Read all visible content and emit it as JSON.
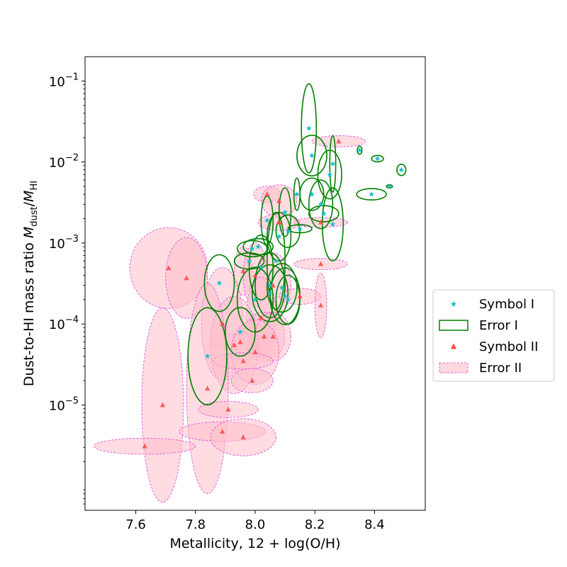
{
  "chart_data": {
    "type": "scatter",
    "xlabel": "Metallicity, 12 + log(O/H)",
    "ylabel_main": "Dust-to-HI mass ratio ",
    "ylabel_math_M": "M",
    "ylabel_sub_dust": "dust",
    "ylabel_sub_HI": "HI",
    "xlim": [
      7.43,
      8.57
    ],
    "ylim_log10": [
      -6.3,
      -0.7
    ],
    "y_scale": "log",
    "x_ticks": [
      {
        "value": 7.6,
        "label": "7.6"
      },
      {
        "value": 7.8,
        "label": "7.8"
      },
      {
        "value": 8.0,
        "label": "8.0"
      },
      {
        "value": 8.2,
        "label": "8.2"
      },
      {
        "value": 8.4,
        "label": "8.4"
      }
    ],
    "y_ticks": [
      {
        "exp": -1,
        "base": "10",
        "sup": "−1"
      },
      {
        "exp": -2,
        "base": "10",
        "sup": "−2"
      },
      {
        "exp": -3,
        "base": "10",
        "sup": "−3"
      },
      {
        "exp": -4,
        "base": "10",
        "sup": "−4"
      },
      {
        "exp": -5,
        "base": "10",
        "sup": "−5"
      }
    ],
    "legend": {
      "position": "right",
      "entries": [
        {
          "label": "Symbol I",
          "kind": "star"
        },
        {
          "label": "Error I",
          "kind": "ellipse-outline"
        },
        {
          "label": "Symbol II",
          "kind": "triangle"
        },
        {
          "label": "Error II",
          "kind": "ellipse-fill"
        }
      ]
    },
    "colors": {
      "symbol_I": "#17becf",
      "error_I": "#008000",
      "symbol_II": "#ff4444",
      "error_II_fill": "#ffc0cb",
      "error_II_edge": "#e040e0"
    },
    "series": [
      {
        "name": "Symbol I",
        "marker": "star",
        "points": [
          {
            "x": 8.18,
            "y": 0.026,
            "dx": 0.025,
            "dlog": 0.55
          },
          {
            "x": 8.19,
            "y": 0.012,
            "dx": 0.05,
            "dlog": 0.25
          },
          {
            "x": 8.25,
            "y": 0.007,
            "dx": 0.04,
            "dlog": 0.3
          },
          {
            "x": 8.26,
            "y": 0.0095,
            "dx": 0.01,
            "dlog": 0.35
          },
          {
            "x": 8.35,
            "y": 0.014,
            "dx": 0.008,
            "dlog": 0.05
          },
          {
            "x": 8.41,
            "y": 0.011,
            "dx": 0.02,
            "dlog": 0.04
          },
          {
            "x": 8.49,
            "y": 0.008,
            "dx": 0.015,
            "dlog": 0.07
          },
          {
            "x": 8.45,
            "y": 0.005,
            "dx": 0.01,
            "dlog": 0.02
          },
          {
            "x": 8.39,
            "y": 0.004,
            "dx": 0.05,
            "dlog": 0.07
          },
          {
            "x": 8.14,
            "y": 0.004,
            "dx": 0.01,
            "dlog": 0.2
          },
          {
            "x": 8.19,
            "y": 0.004,
            "dx": 0.04,
            "dlog": 0.2
          },
          {
            "x": 8.22,
            "y": 0.003,
            "dx": 0.04,
            "dlog": 0.3
          },
          {
            "x": 8.23,
            "y": 0.0023,
            "dx": 0.05,
            "dlog": 0.1
          },
          {
            "x": 8.26,
            "y": 0.0017,
            "dx": 0.035,
            "dlog": 0.45
          },
          {
            "x": 8.1,
            "y": 0.0024,
            "dx": 0.02,
            "dlog": 0.3
          },
          {
            "x": 8.15,
            "y": 0.0015,
            "dx": 0.04,
            "dlog": 0.05
          },
          {
            "x": 8.04,
            "y": 0.0019,
            "dx": 0.02,
            "dlog": 0.3
          },
          {
            "x": 8.11,
            "y": 0.0014,
            "dx": 0.04,
            "dlog": 0.2
          },
          {
            "x": 8.08,
            "y": 0.0012,
            "dx": 0.04,
            "dlog": 0.3
          },
          {
            "x": 8.01,
            "y": 0.0009,
            "dx": 0.05,
            "dlog": 0.1
          },
          {
            "x": 7.99,
            "y": 0.00085,
            "dx": 0.05,
            "dlog": 0.1
          },
          {
            "x": 7.98,
            "y": 0.0006,
            "dx": 0.05,
            "dlog": 0.1
          },
          {
            "x": 8.07,
            "y": 0.0006,
            "dx": 0.03,
            "dlog": 0.6
          },
          {
            "x": 8.02,
            "y": 0.0005,
            "dx": 0.04,
            "dlog": 0.4
          },
          {
            "x": 7.88,
            "y": 0.00032,
            "dx": 0.05,
            "dlog": 0.35
          },
          {
            "x": 8.05,
            "y": 0.0003,
            "dx": 0.05,
            "dlog": 0.4
          },
          {
            "x": 8.05,
            "y": 0.00024,
            "dx": 0.06,
            "dlog": 0.35
          },
          {
            "x": 8.09,
            "y": 0.00028,
            "dx": 0.05,
            "dlog": 0.3
          },
          {
            "x": 8.1,
            "y": 0.00022,
            "dx": 0.05,
            "dlog": 0.35
          },
          {
            "x": 8.0,
            "y": 0.0002,
            "dx": 0.06,
            "dlog": 0.4
          },
          {
            "x": 8.11,
            "y": 0.0002,
            "dx": 0.04,
            "dlog": 0.3
          },
          {
            "x": 7.84,
            "y": 4e-05,
            "dx": 0.065,
            "dlog": 0.6
          },
          {
            "x": 7.95,
            "y": 8e-05,
            "dx": 0.05,
            "dlog": 0.3
          }
        ]
      },
      {
        "name": "Symbol II",
        "marker": "triangle",
        "points": [
          {
            "x": 8.28,
            "y": 0.018,
            "dx": 0.09,
            "dlog": 0.07
          },
          {
            "x": 8.04,
            "y": 0.004,
            "dx": 0.045,
            "dlog": 0.1
          },
          {
            "x": 8.08,
            "y": 0.0033,
            "dx": 0.06,
            "dlog": 0.2
          },
          {
            "x": 8.22,
            "y": 0.0018,
            "dx": 0.09,
            "dlog": 0.06
          },
          {
            "x": 8.08,
            "y": 0.0018,
            "dx": 0.07,
            "dlog": 0.1
          },
          {
            "x": 8.22,
            "y": 0.00055,
            "dx": 0.09,
            "dlog": 0.07
          },
          {
            "x": 7.71,
            "y": 0.00049,
            "dx": 0.13,
            "dlog": 0.5
          },
          {
            "x": 7.77,
            "y": 0.00037,
            "dx": 0.07,
            "dlog": 0.5
          },
          {
            "x": 7.96,
            "y": 0.00045,
            "dx": 0.03,
            "dlog": 0.3
          },
          {
            "x": 8.0,
            "y": 0.0004,
            "dx": 0.04,
            "dlog": 0.4
          },
          {
            "x": 8.06,
            "y": 0.0003,
            "dx": 0.06,
            "dlog": 0.4
          },
          {
            "x": 8.15,
            "y": 0.00022,
            "dx": 0.07,
            "dlog": 0.1
          },
          {
            "x": 8.22,
            "y": 0.00017,
            "dx": 0.02,
            "dlog": 0.4
          },
          {
            "x": 7.89,
            "y": 0.0001,
            "dx": 0.07,
            "dlog": 0.7
          },
          {
            "x": 8.02,
            "y": 0.00012,
            "dx": 0.05,
            "dlog": 0.5
          },
          {
            "x": 7.95,
            "y": 6e-05,
            "dx": 0.1,
            "dlog": 0.1
          },
          {
            "x": 8.03,
            "y": 7e-05,
            "dx": 0.07,
            "dlog": 0.3
          },
          {
            "x": 8.06,
            "y": 7e-05,
            "dx": 0.06,
            "dlog": 0.3
          },
          {
            "x": 7.93,
            "y": 5.5e-05,
            "dx": 0.08,
            "dlog": 0.6
          },
          {
            "x": 8.0,
            "y": 4.5e-05,
            "dx": 0.08,
            "dlog": 0.4
          },
          {
            "x": 7.96,
            "y": 3.5e-05,
            "dx": 0.1,
            "dlog": 0.1
          },
          {
            "x": 7.99,
            "y": 2e-05,
            "dx": 0.07,
            "dlog": 0.15
          },
          {
            "x": 7.84,
            "y": 1.6e-05,
            "dx": 0.07,
            "dlog": 1.3
          },
          {
            "x": 7.69,
            "y": 1e-05,
            "dx": 0.07,
            "dlog": 1.2
          },
          {
            "x": 7.91,
            "y": 8.8e-06,
            "dx": 0.1,
            "dlog": 0.1
          },
          {
            "x": 7.89,
            "y": 4.7e-06,
            "dx": 0.145,
            "dlog": 0.12
          },
          {
            "x": 7.96,
            "y": 4e-06,
            "dx": 0.11,
            "dlog": 0.23
          },
          {
            "x": 7.63,
            "y": 3.1e-06,
            "dx": 0.17,
            "dlog": 0.1
          }
        ]
      }
    ]
  }
}
